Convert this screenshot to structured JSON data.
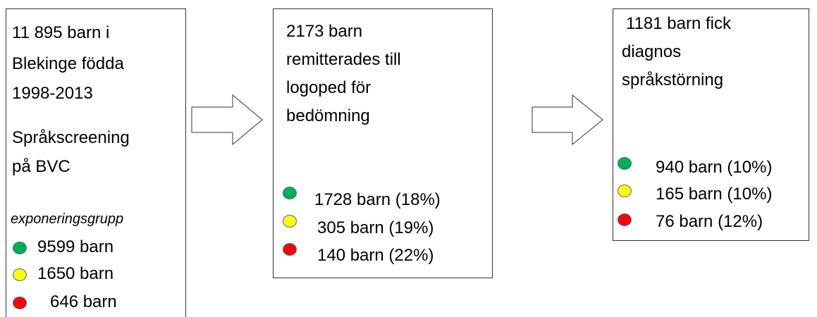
{
  "boxes": [
    {
      "lines": [
        "11 895 barn i",
        "Blekinge födda",
        "1998-2013"
      ],
      "screening": [
        "Språkscreening",
        "på BVC"
      ],
      "group_label": "exponeringsgrupp",
      "groups": [
        "9599 barn",
        "1650 barn",
        "646 barn"
      ]
    },
    {
      "lines": [
        "2173 barn",
        "remitterades till",
        "logoped för",
        "bedömning"
      ],
      "groups": [
        "1728 barn (18%)",
        "305 barn (19%)",
        "140 barn (22%)"
      ]
    },
    {
      "lines": [
        "1181 barn fick",
        "diagnos",
        "språkstörning"
      ],
      "groups": [
        "940 barn (10%)",
        "165 barn (10%)",
        "76 barn (12%)"
      ]
    }
  ]
}
